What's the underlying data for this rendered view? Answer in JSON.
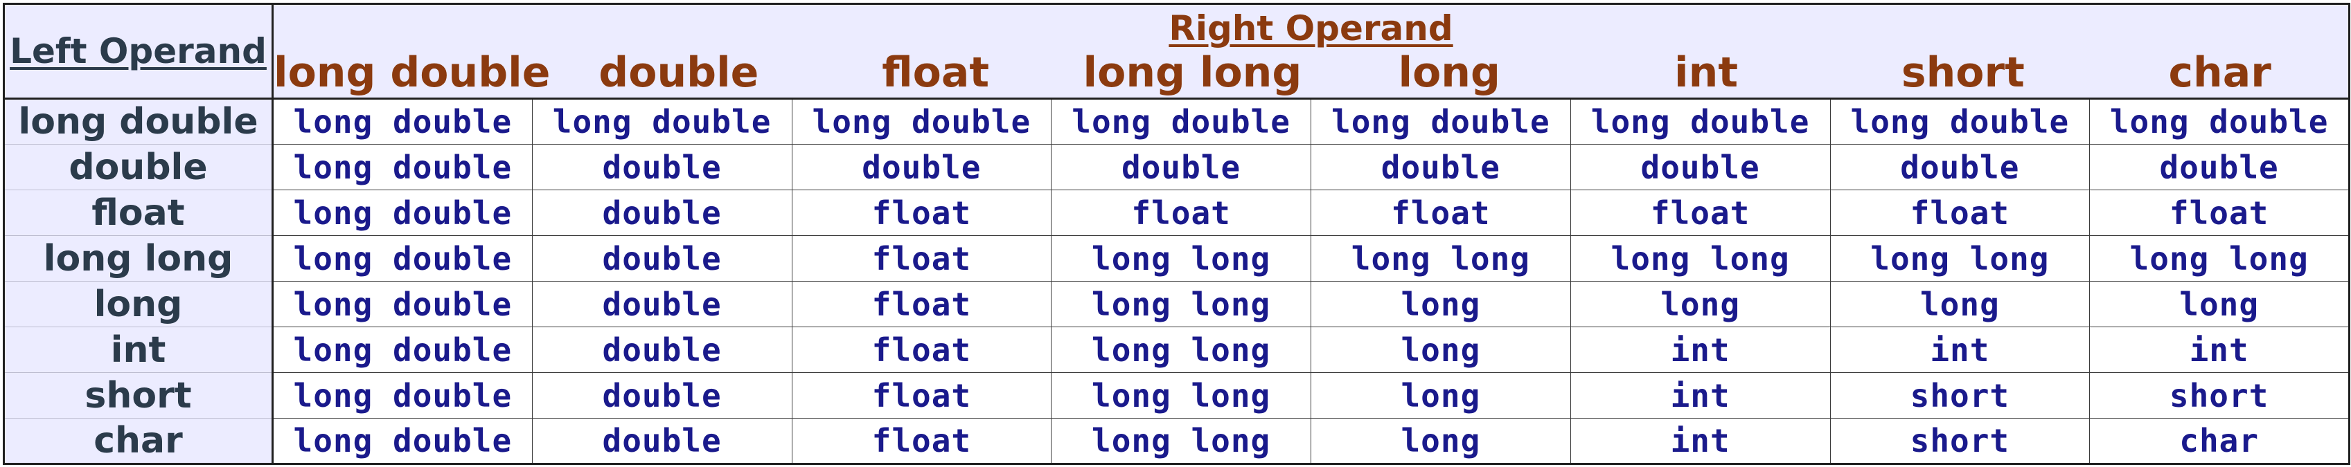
{
  "table": {
    "corner_label": "Left Operand",
    "right_title": "Right Operand",
    "columns": [
      "long double",
      "double",
      "float",
      "long long",
      "long",
      "int",
      "short",
      "char"
    ],
    "rows": [
      {
        "label": "long double",
        "cells": [
          "long double",
          "long double",
          "long double",
          "long double",
          "long double",
          "long double",
          "long double",
          "long double"
        ]
      },
      {
        "label": "double",
        "cells": [
          "long double",
          "double",
          "double",
          "double",
          "double",
          "double",
          "double",
          "double"
        ]
      },
      {
        "label": "float",
        "cells": [
          "long double",
          "double",
          "float",
          "float",
          "float",
          "float",
          "float",
          "float"
        ]
      },
      {
        "label": "long long",
        "cells": [
          "long double",
          "double",
          "float",
          "long long",
          "long long",
          "long long",
          "long long",
          "long long"
        ]
      },
      {
        "label": "long",
        "cells": [
          "long double",
          "double",
          "float",
          "long long",
          "long",
          "long",
          "long",
          "long"
        ]
      },
      {
        "label": "int",
        "cells": [
          "long double",
          "double",
          "float",
          "long long",
          "long",
          "int",
          "int",
          "int"
        ]
      },
      {
        "label": "short",
        "cells": [
          "long double",
          "double",
          "float",
          "long long",
          "long",
          "int",
          "short",
          "short"
        ]
      },
      {
        "label": "char",
        "cells": [
          "long double",
          "double",
          "float",
          "long long",
          "long",
          "int",
          "short",
          "char"
        ]
      }
    ],
    "colors": {
      "header_bg": "#ececff",
      "header_text": "#8b3a0f",
      "label_text": "#2b3b4b",
      "cell_text": "#1a1a8c"
    }
  }
}
